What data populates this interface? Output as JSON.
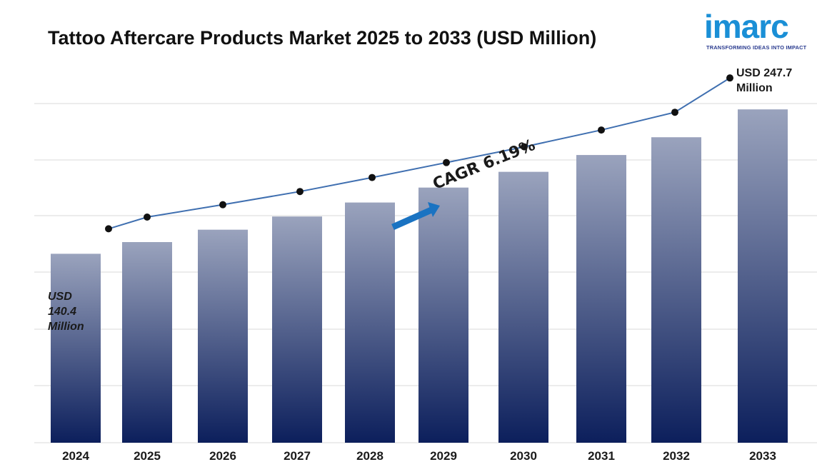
{
  "title": "Tattoo Aftercare Products Market 2025 to 2033 (USD Million)",
  "logo": {
    "name": "imarc",
    "tagline": "TRANSFORMING IDEAS INTO IMPACT"
  },
  "annotations": {
    "start_value": "USD 140.4 Million",
    "end_value": "USD 247.7 Million",
    "cagr": "CAGR  6.19%"
  },
  "colors": {
    "bar_top": "#9aa3bd",
    "bar_bottom": "#0c1f5c",
    "line": "#3f6fb0",
    "arrow": "#1a73c2",
    "logo": "#1a8fd6"
  },
  "chart_data": {
    "type": "bar",
    "categories": [
      "2024",
      "2025",
      "2026",
      "2027",
      "2028",
      "2029",
      "2030",
      "2031",
      "2032",
      "2033"
    ],
    "values": [
      140.4,
      149.1,
      158.3,
      168.1,
      178.5,
      189.6,
      201.3,
      213.8,
      227.0,
      247.7
    ],
    "trend_line_values": [
      140.4,
      149.1,
      158.3,
      168.1,
      178.5,
      189.6,
      201.3,
      213.8,
      227.0,
      247.7
    ],
    "ylim": [
      0,
      260
    ],
    "grid": true,
    "legend": "none",
    "xlabel": "",
    "ylabel": ""
  }
}
